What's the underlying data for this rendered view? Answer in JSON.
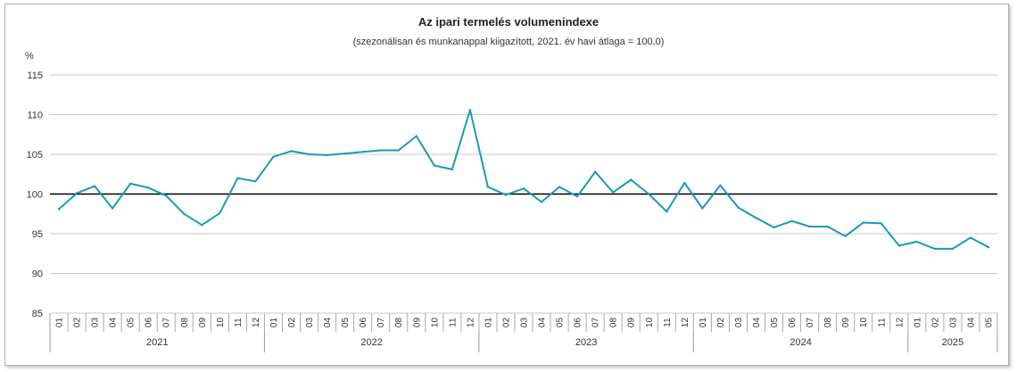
{
  "chart_data": {
    "type": "line",
    "title": "Az ipari termelés volumenindexe",
    "subtitle": "(szezonálisan és munkanappal kiigazított, 2021. év havi átlaga = 100,0)",
    "ylabel": "%",
    "ylim": [
      85,
      115
    ],
    "yticks": [
      "115",
      "110",
      "105",
      "100",
      "95",
      "90",
      "85"
    ],
    "reference_line": 100,
    "grid": true,
    "colors": {
      "series": "#1a9bb5",
      "reference": "#000000",
      "grid": "#c8c8c8"
    },
    "months": [
      "01",
      "02",
      "03",
      "04",
      "05",
      "06",
      "07",
      "08",
      "09",
      "10",
      "11",
      "12"
    ],
    "years": [
      {
        "label": "2021",
        "count": 12
      },
      {
        "label": "2022",
        "count": 12
      },
      {
        "label": "2023",
        "count": 12
      },
      {
        "label": "2024",
        "count": 12
      },
      {
        "label": "2025",
        "count": 5
      }
    ],
    "values": [
      98.1,
      100.1,
      101.0,
      98.2,
      101.3,
      100.8,
      99.8,
      97.5,
      96.1,
      97.6,
      102.0,
      101.6,
      104.7,
      105.4,
      105.0,
      104.9,
      105.1,
      105.3,
      105.5,
      105.5,
      107.3,
      103.6,
      103.1,
      110.6,
      100.9,
      99.9,
      100.7,
      99.0,
      100.9,
      99.7,
      102.8,
      100.2,
      101.8,
      100.0,
      97.8,
      101.4,
      98.2,
      101.1,
      98.3,
      97.0,
      95.8,
      96.6,
      95.9,
      95.9,
      94.7,
      96.4,
      96.3,
      93.5,
      94.0,
      93.1,
      93.1,
      94.5,
      93.3
    ]
  }
}
